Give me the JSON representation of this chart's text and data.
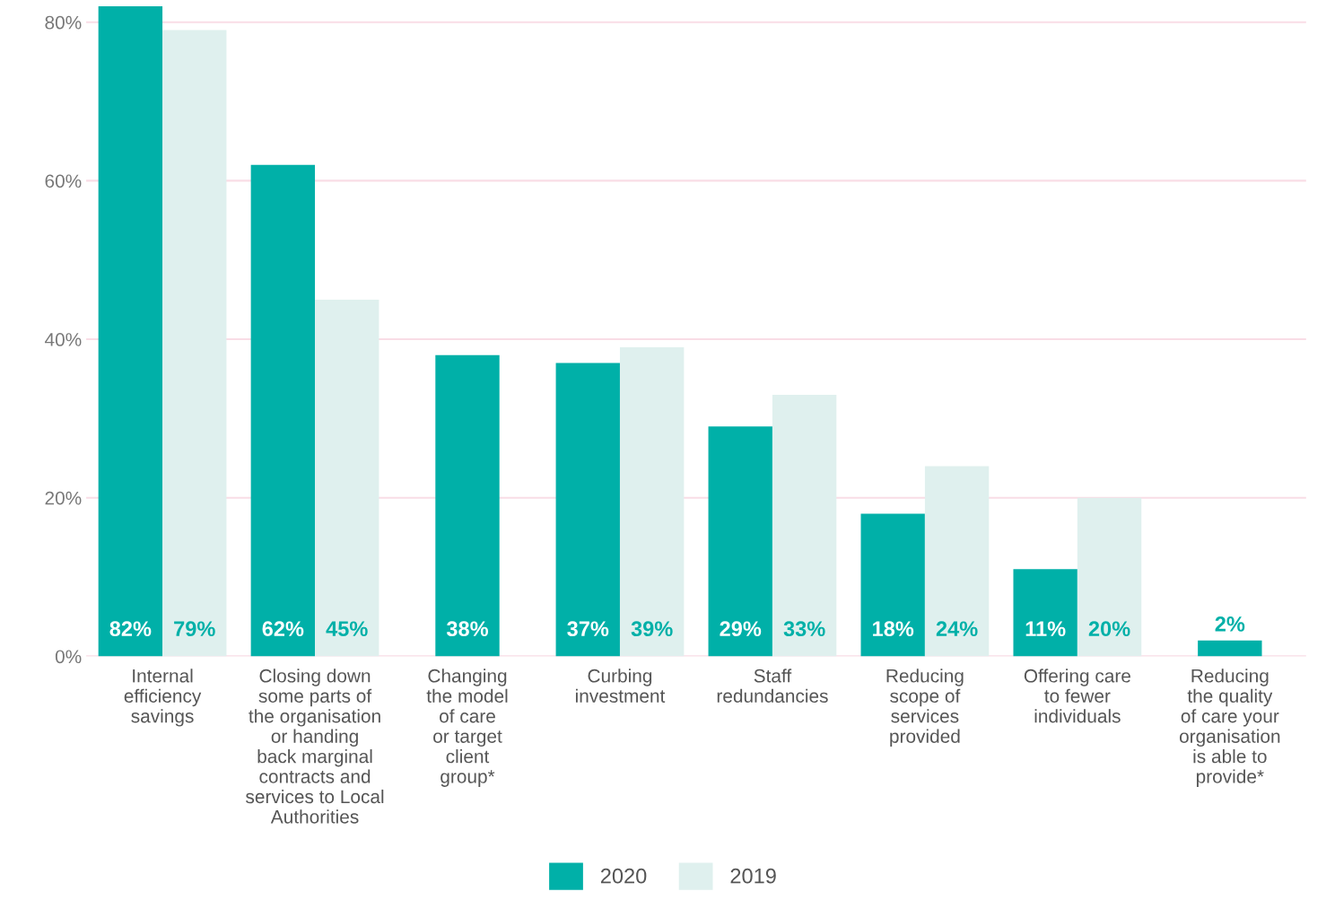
{
  "chart_data": {
    "type": "bar",
    "categories": [
      "Internal\nefficiency\nsavings",
      "Closing down\nsome parts of\nthe organisation\nor handing\nback marginal\ncontracts and\nservices to Local\nAuthorities",
      "Changing\nthe model\nof care\nor target\nclient\ngroup*",
      "Curbing\ninvestment",
      "Staff\nredundancies",
      "Reducing\nscope of\nservices\nprovided",
      "Offering care\nto fewer\nindividuals",
      "Reducing\nthe quality\nof care your\norganisation\nis able to\nprovide*"
    ],
    "series": [
      {
        "name": "2020",
        "color": "#00b0a8",
        "values": [
          82,
          62,
          38,
          37,
          29,
          18,
          11,
          2
        ],
        "value_labels": [
          "82%",
          "62%",
          "38%",
          "37%",
          "29%",
          "18%",
          "11%",
          "2%"
        ]
      },
      {
        "name": "2019",
        "color": "#dff0ee",
        "values": [
          79,
          45,
          null,
          39,
          33,
          24,
          20,
          null
        ],
        "value_labels": [
          "79%",
          "45%",
          null,
          "39%",
          "33%",
          "24%",
          "20%",
          null
        ]
      }
    ],
    "ylim": [
      0,
      82
    ],
    "yticks": [
      {
        "value": 0,
        "label": "0%"
      },
      {
        "value": 20,
        "label": "20%"
      },
      {
        "value": 40,
        "label": "40%"
      },
      {
        "value": 60,
        "label": "60%"
      },
      {
        "value": 80,
        "label": "80%"
      }
    ],
    "grid": "y",
    "legend": "bottom"
  }
}
